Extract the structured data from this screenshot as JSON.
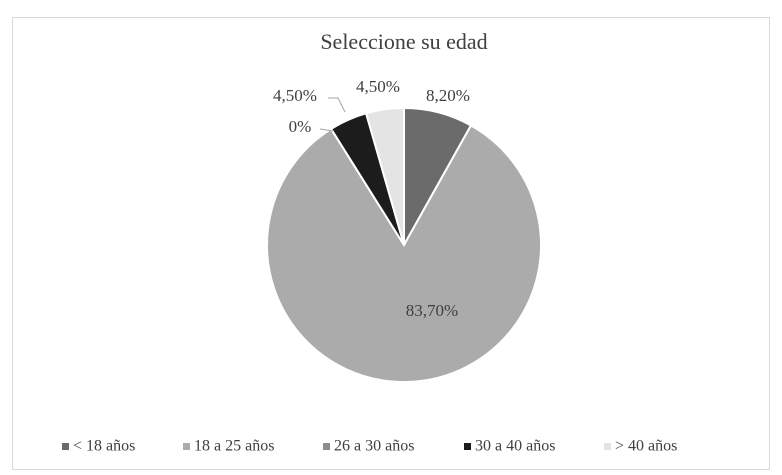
{
  "chart_data": {
    "type": "pie",
    "title": "Seleccione su edad",
    "categories": [
      "< 18 años",
      "18 a 25 años",
      "26 a 30 años",
      "30 a 40 años",
      "> 40 años"
    ],
    "values": [
      8.2,
      83.7,
      0,
      4.5,
      4.5
    ],
    "value_labels": [
      "8,20%",
      "83,70%",
      "0%",
      "4,50%",
      "4,50%"
    ],
    "colors": [
      "#6b6b6b",
      "#ababab",
      "#8c8c8c",
      "#1c1c1c",
      "#e4e4e4"
    ],
    "legend": "bottom"
  }
}
